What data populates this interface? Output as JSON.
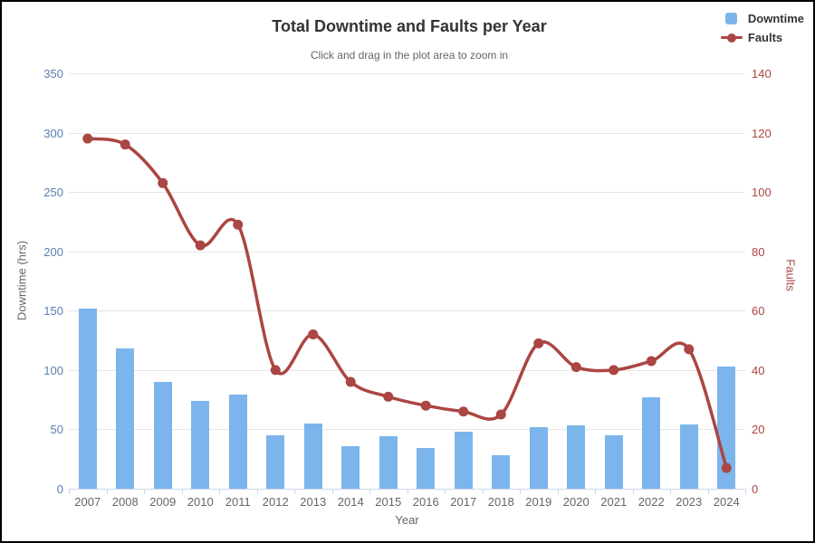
{
  "chart_data": {
    "type": "combo",
    "title": "Total Downtime and Faults per Year",
    "subtitle": "Click and drag in the plot area to zoom in",
    "categories": [
      "2007",
      "2008",
      "2009",
      "2010",
      "2011",
      "2012",
      "2013",
      "2014",
      "2015",
      "2016",
      "2017",
      "2018",
      "2019",
      "2020",
      "2021",
      "2022",
      "2023",
      "2024"
    ],
    "series": [
      {
        "name": "Downtime",
        "type": "bar",
        "axis": "left",
        "color": "#7cb5ec",
        "values": [
          152,
          118,
          90,
          74,
          79,
          45,
          55,
          36,
          44,
          34,
          48,
          28,
          52,
          53,
          45,
          77,
          54,
          103
        ]
      },
      {
        "name": "Faults",
        "type": "line",
        "axis": "right",
        "color": "#aa4643",
        "values": [
          118,
          116,
          103,
          82,
          89,
          40,
          52,
          36,
          31,
          28,
          26,
          25,
          49,
          41,
          40,
          43,
          47,
          7
        ]
      }
    ],
    "x_axis": {
      "title": "Year",
      "label_color": "#666666"
    },
    "y_axis_left": {
      "title": "Downtime (hrs)",
      "min": 0,
      "max": 350,
      "ticks": [
        0,
        50,
        100,
        150,
        200,
        250,
        300,
        350
      ],
      "label_color": "#5a7fb0",
      "title_color": "#666666"
    },
    "y_axis_right": {
      "title": "Faults",
      "min": 0,
      "max": 140,
      "ticks": [
        0,
        20,
        40,
        60,
        80,
        100,
        120,
        140
      ],
      "label_color": "#aa4643",
      "title_color": "#aa4643"
    },
    "grid": true,
    "legend_position": "top-right",
    "colors": {
      "gridline": "#e6e6e6",
      "axis_line": "#ccd6eb",
      "title": "#333333",
      "subtitle": "#666666"
    }
  }
}
